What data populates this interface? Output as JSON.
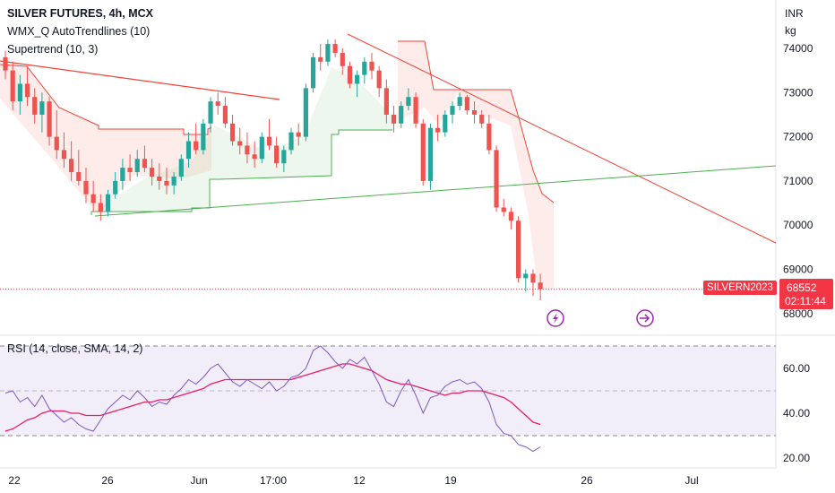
{
  "header": {
    "symbol_line": "SILVER FUTURES, 4h, MCX",
    "indicator_1": "WMX_Q AutoTrendlines (10)",
    "indicator_2": "Supertrend (10, 3)",
    "currency": "INR",
    "unit": "kg"
  },
  "price_tag": {
    "symbol": "SILVERN2023",
    "last_price": "68552",
    "countdown": "02:11:44"
  },
  "rsi_panel": {
    "label": "RSI (14, close, SMA, 14, 2)"
  },
  "colors": {
    "up": "#26a69a",
    "down": "#ef5350",
    "trend_up": "#4caf50",
    "trend_down": "#f44336",
    "rsi_line": "#7e57c2",
    "rsi_ma": "#e91e63",
    "price_tag": "#f23645"
  },
  "icons": [
    "lightning-icon",
    "forward-arrow-icon"
  ],
  "chart_data": [
    {
      "type": "candlestick",
      "title": "SILVER FUTURES, 4h, MCX",
      "y_ticks": [
        74000,
        73000,
        72000,
        71000,
        70000,
        69000,
        68000
      ],
      "ylim": [
        67800,
        74800
      ],
      "x_ticks": [
        "22",
        "26",
        "Jun",
        "17:00",
        "12",
        "19",
        "26",
        "Jul"
      ],
      "last_price": 68552,
      "candles_ohlc": [
        [
          73800,
          73950,
          73300,
          73500
        ],
        [
          73500,
          73700,
          72600,
          72800
        ],
        [
          72800,
          73400,
          72500,
          73200
        ],
        [
          73200,
          73600,
          72700,
          72900
        ],
        [
          72900,
          73100,
          72300,
          72500
        ],
        [
          72500,
          73000,
          72100,
          72800
        ],
        [
          72800,
          72900,
          71800,
          72000
        ],
        [
          72000,
          72600,
          71500,
          71700
        ],
        [
          71700,
          72100,
          71300,
          71500
        ],
        [
          71500,
          71900,
          71000,
          71200
        ],
        [
          71200,
          71700,
          70900,
          71000
        ],
        [
          71000,
          71300,
          70500,
          70700
        ],
        [
          70700,
          71000,
          70300,
          70500
        ],
        [
          70500,
          70700,
          70100,
          70300
        ],
        [
          70300,
          70800,
          70200,
          70700
        ],
        [
          70700,
          71200,
          70600,
          71000
        ],
        [
          71000,
          71500,
          70800,
          71300
        ],
        [
          71300,
          71600,
          71000,
          71200
        ],
        [
          71200,
          71700,
          71100,
          71500
        ],
        [
          71500,
          71800,
          71200,
          71300
        ],
        [
          71300,
          71500,
          70900,
          71100
        ],
        [
          71100,
          71400,
          70800,
          71000
        ],
        [
          71000,
          71300,
          70700,
          70900
        ],
        [
          70900,
          71200,
          70700,
          71100
        ],
        [
          71100,
          71600,
          71000,
          71500
        ],
        [
          71500,
          72100,
          71300,
          71900
        ],
        [
          71900,
          72300,
          71600,
          71700
        ],
        [
          71700,
          72400,
          71600,
          72300
        ],
        [
          72300,
          72900,
          72100,
          72800
        ],
        [
          72800,
          73000,
          72500,
          72700
        ],
        [
          72700,
          72900,
          72200,
          72300
        ],
        [
          72300,
          72500,
          71800,
          71900
        ],
        [
          71900,
          72200,
          71600,
          71800
        ],
        [
          71800,
          72100,
          71400,
          71600
        ],
        [
          71600,
          71900,
          71300,
          71500
        ],
        [
          71500,
          72100,
          71400,
          72000
        ],
        [
          72000,
          72400,
          71700,
          71800
        ],
        [
          71800,
          72000,
          71300,
          71400
        ],
        [
          71400,
          71800,
          71200,
          71700
        ],
        [
          71700,
          72200,
          71600,
          72100
        ],
        [
          72100,
          72300,
          71800,
          72000
        ],
        [
          72000,
          73200,
          71900,
          73100
        ],
        [
          73100,
          73900,
          73000,
          73800
        ],
        [
          73800,
          74100,
          73500,
          73700
        ],
        [
          73700,
          74200,
          73600,
          74100
        ],
        [
          74100,
          74200,
          73800,
          73900
        ],
        [
          73900,
          74000,
          73400,
          73600
        ],
        [
          73600,
          73700,
          73100,
          73200
        ],
        [
          73200,
          73500,
          72900,
          73400
        ],
        [
          73400,
          73800,
          73200,
          73700
        ],
        [
          73700,
          73900,
          73300,
          73500
        ],
        [
          73500,
          73600,
          72900,
          73100
        ],
        [
          73100,
          73300,
          72300,
          72500
        ],
        [
          72500,
          72700,
          72100,
          72300
        ],
        [
          72300,
          72800,
          72200,
          72700
        ],
        [
          72700,
          73100,
          72600,
          72900
        ],
        [
          72900,
          73000,
          72200,
          72300
        ],
        [
          72300,
          72400,
          70900,
          71000
        ],
        [
          71000,
          72300,
          70800,
          72200
        ],
        [
          72200,
          72500,
          71900,
          72100
        ],
        [
          72100,
          72600,
          72000,
          72500
        ],
        [
          72500,
          72800,
          72300,
          72700
        ],
        [
          72700,
          73000,
          72600,
          72900
        ],
        [
          72900,
          72950,
          72500,
          72600
        ],
        [
          72600,
          72800,
          72300,
          72500
        ],
        [
          72500,
          72600,
          72200,
          72300
        ],
        [
          72300,
          72500,
          71600,
          71700
        ],
        [
          71700,
          71800,
          70300,
          70400
        ],
        [
          70400,
          70600,
          70200,
          70300
        ],
        [
          70300,
          70400,
          69900,
          70100
        ],
        [
          70100,
          70200,
          68700,
          68800
        ],
        [
          68800,
          69000,
          68500,
          68900
        ],
        [
          68900,
          69000,
          68400,
          68700
        ],
        [
          68700,
          68900,
          68300,
          68552
        ]
      ]
    },
    {
      "type": "line",
      "title": "RSI (14, close, SMA, 14, 2)",
      "y_ticks": [
        60.0,
        40.0,
        20.0
      ],
      "ylim": [
        17,
        73
      ],
      "bands": [
        70,
        50,
        30
      ],
      "series": [
        {
          "name": "RSI",
          "values": [
            49,
            50,
            45,
            47,
            43,
            48,
            42,
            39,
            36,
            38,
            35,
            33,
            32,
            37,
            42,
            45,
            48,
            46,
            50,
            47,
            43,
            45,
            44,
            48,
            51,
            55,
            53,
            56,
            60,
            62,
            58,
            54,
            52,
            55,
            53,
            51,
            54,
            50,
            52,
            56,
            57,
            60,
            68,
            70,
            67,
            63,
            60,
            64,
            62,
            65,
            59,
            53,
            45,
            43,
            50,
            55,
            48,
            40,
            47,
            48,
            52,
            54,
            55,
            53,
            54,
            51,
            45,
            35,
            31,
            30,
            26,
            25,
            23,
            25
          ]
        },
        {
          "name": "RSI-based MA",
          "values": [
            32,
            33,
            35,
            37,
            38,
            40,
            41,
            41,
            41,
            40,
            40,
            39,
            39,
            39,
            40,
            41,
            42,
            43,
            44,
            45,
            45,
            46,
            46,
            47,
            48,
            49,
            50,
            51,
            53,
            54,
            55,
            55,
            55,
            55,
            55,
            55,
            55,
            55,
            55,
            55,
            56,
            57,
            58,
            59,
            60,
            61,
            62,
            62,
            61,
            60,
            59,
            57,
            55,
            54,
            53,
            53,
            52,
            51,
            50,
            49,
            48,
            49,
            49,
            50,
            50,
            50,
            49,
            48,
            47,
            45,
            42,
            39,
            36,
            35
          ]
        }
      ]
    }
  ]
}
